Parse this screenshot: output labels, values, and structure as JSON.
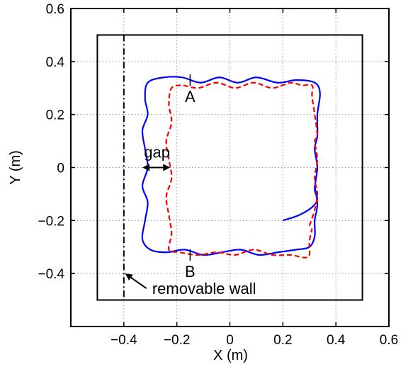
{
  "chart_data": {
    "type": "line",
    "xlabel": "X (m)",
    "ylabel": "Y (m)",
    "xlim": [
      -0.6,
      0.6
    ],
    "ylim": [
      -0.6,
      0.6
    ],
    "xticks": [
      -0.4,
      -0.2,
      0,
      0.2,
      0.4,
      0.6
    ],
    "xtick_labels": [
      "−0.4",
      "−0.2",
      "0",
      "0.2",
      "0.4",
      "0.6"
    ],
    "yticks": [
      -0.4,
      -0.2,
      0,
      0.2,
      0.4,
      0.6
    ],
    "ytick_labels": [
      "−0.4",
      "−0.2",
      "0",
      "0.2",
      "0.4",
      "0.6"
    ],
    "grid": true,
    "arena_box": {
      "x": [
        -0.5,
        0.5
      ],
      "y": [
        -0.5,
        0.5
      ]
    },
    "removable_wall": {
      "x": -0.4,
      "y": [
        -0.5,
        0.5
      ],
      "style": "dash-dot"
    },
    "series": [
      {
        "color": "#0000ff",
        "style": "solid",
        "points": [
          [
            0.2,
            -0.2
          ],
          [
            0.26,
            -0.18
          ],
          [
            0.31,
            -0.15
          ],
          [
            0.33,
            -0.12
          ],
          [
            0.32,
            -0.08
          ],
          [
            0.33,
            0.0
          ],
          [
            0.32,
            0.07
          ],
          [
            0.33,
            0.12
          ],
          [
            0.33,
            0.2
          ],
          [
            0.34,
            0.28
          ],
          [
            0.32,
            0.32
          ],
          [
            0.25,
            0.33
          ],
          [
            0.18,
            0.32
          ],
          [
            0.1,
            0.34
          ],
          [
            0.03,
            0.32
          ],
          [
            -0.04,
            0.34
          ],
          [
            -0.11,
            0.32
          ],
          [
            -0.18,
            0.34
          ],
          [
            -0.25,
            0.34
          ],
          [
            -0.31,
            0.32
          ],
          [
            -0.32,
            0.26
          ],
          [
            -0.31,
            0.2
          ],
          [
            -0.33,
            0.14
          ],
          [
            -0.32,
            0.07
          ],
          [
            -0.31,
            0.0
          ],
          [
            -0.33,
            -0.07
          ],
          [
            -0.31,
            -0.13
          ],
          [
            -0.32,
            -0.2
          ],
          [
            -0.33,
            -0.27
          ],
          [
            -0.3,
            -0.31
          ],
          [
            -0.24,
            -0.32
          ],
          [
            -0.17,
            -0.31
          ],
          [
            -0.1,
            -0.33
          ],
          [
            -0.03,
            -0.32
          ],
          [
            0.04,
            -0.31
          ],
          [
            0.11,
            -0.33
          ],
          [
            0.18,
            -0.32
          ],
          [
            0.25,
            -0.31
          ],
          [
            0.3,
            -0.3
          ],
          [
            0.32,
            -0.26
          ],
          [
            0.32,
            -0.2
          ],
          [
            0.33,
            -0.14
          ],
          [
            0.32,
            -0.07
          ]
        ]
      },
      {
        "color": "#ff0000",
        "style": "dashed",
        "points": [
          [
            0.3,
            -0.22
          ],
          [
            0.32,
            -0.16
          ],
          [
            0.33,
            -0.1
          ],
          [
            0.32,
            -0.04
          ],
          [
            0.33,
            0.03
          ],
          [
            0.32,
            0.1
          ],
          [
            0.33,
            0.12
          ],
          [
            0.32,
            0.2
          ],
          [
            0.31,
            0.27
          ],
          [
            0.31,
            0.31
          ],
          [
            0.27,
            0.31
          ],
          [
            0.23,
            0.32
          ],
          [
            0.16,
            0.3
          ],
          [
            0.09,
            0.32
          ],
          [
            0.02,
            0.3
          ],
          [
            -0.05,
            0.32
          ],
          [
            -0.12,
            0.3
          ],
          [
            -0.18,
            0.31
          ],
          [
            -0.22,
            0.3
          ],
          [
            -0.23,
            0.24
          ],
          [
            -0.22,
            0.17
          ],
          [
            -0.24,
            0.1
          ],
          [
            -0.23,
            0.03
          ],
          [
            -0.22,
            -0.04
          ],
          [
            -0.24,
            -0.11
          ],
          [
            -0.23,
            -0.18
          ],
          [
            -0.22,
            -0.25
          ],
          [
            -0.23,
            -0.31
          ],
          [
            -0.19,
            -0.32
          ],
          [
            -0.12,
            -0.33
          ],
          [
            -0.05,
            -0.32
          ],
          [
            0.02,
            -0.33
          ],
          [
            0.09,
            -0.31
          ],
          [
            0.16,
            -0.33
          ],
          [
            0.23,
            -0.33
          ],
          [
            0.28,
            -0.34
          ],
          [
            0.3,
            -0.33
          ],
          [
            0.3,
            -0.28
          ],
          [
            0.31,
            -0.23
          ]
        ]
      }
    ],
    "annotations": [
      {
        "text": "A",
        "x": -0.15,
        "y": 0.33
      },
      {
        "text": "B",
        "x": -0.15,
        "y": -0.33
      },
      {
        "text": "gap",
        "x": -0.275,
        "y": 0.0
      },
      {
        "text": "removable wall",
        "x": -0.4,
        "y": -0.4
      }
    ]
  }
}
